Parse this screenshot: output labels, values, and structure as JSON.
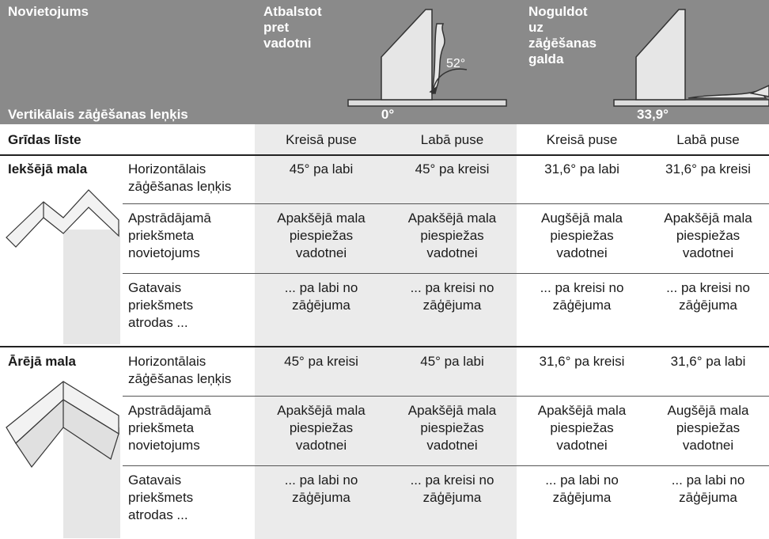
{
  "header": {
    "title": "Novietojums",
    "option_a": [
      "Atbalstot",
      "pret",
      "vadotni"
    ],
    "option_a_angle": "52°",
    "option_b": [
      "Noguldot",
      "uz",
      "zāģēšanas",
      "galda"
    ],
    "vertical_label": "Vertikālais zāģēšanas leņķis",
    "vertical_a": "0°",
    "vertical_b": "33,9°"
  },
  "table": {
    "label": "Grīdas līste",
    "columns": [
      "Kreisā puse",
      "Labā puse",
      "Kreisā puse",
      "Labā puse"
    ],
    "sections": [
      {
        "label": "Iekšējā mala",
        "rows": [
          {
            "label": [
              "Horizontālais",
              "zāģēšanas leņķis"
            ],
            "cells": [
              [
                "45° pa labi"
              ],
              [
                "45° pa kreisi"
              ],
              [
                "31,6° pa labi"
              ],
              [
                "31,6° pa kreisi"
              ]
            ]
          },
          {
            "label": [
              "Apstrādājamā",
              "priekšmeta",
              "novietojums"
            ],
            "cells": [
              [
                "Apakšējā mala",
                "piespiežas",
                "vadotnei"
              ],
              [
                "Apakšējā mala",
                "piespiežas",
                "vadotnei"
              ],
              [
                "Augšējā mala",
                "piespiežas",
                "vadotnei"
              ],
              [
                "Apakšējā mala",
                "piespiežas",
                "vadotnei"
              ]
            ]
          },
          {
            "label": [
              "Gatavais",
              "priekšmets",
              "atrodas ..."
            ],
            "cells": [
              [
                "... pa labi no",
                "zāģējuma"
              ],
              [
                "... pa kreisi no",
                "zāģējuma"
              ],
              [
                "... pa kreisi no",
                "zāģējuma"
              ],
              [
                "... pa kreisi no",
                "zāģējuma"
              ]
            ]
          }
        ]
      },
      {
        "label": "Ārējā mala",
        "rows": [
          {
            "label": [
              "Horizontālais",
              "zāģēšanas leņķis"
            ],
            "cells": [
              [
                "45° pa kreisi"
              ],
              [
                "45° pa labi"
              ],
              [
                "31,6° pa kreisi"
              ],
              [
                "31,6° pa labi"
              ]
            ]
          },
          {
            "label": [
              "Apstrādājamā",
              "priekšmeta",
              "novietojums"
            ],
            "cells": [
              [
                "Apakšējā mala",
                "piespiežas",
                "vadotnei"
              ],
              [
                "Apakšējā mala",
                "piespiežas",
                "vadotnei"
              ],
              [
                "Apakšējā mala",
                "piespiežas",
                "vadotnei"
              ],
              [
                "Augšējā mala",
                "piespiežas",
                "vadotnei"
              ]
            ]
          },
          {
            "label": [
              "Gatavais",
              "priekšmets",
              "atrodas ..."
            ],
            "cells": [
              [
                "... pa labi no",
                "zāģējuma"
              ],
              [
                "... pa kreisi no",
                "zāģējuma"
              ],
              [
                "... pa labi no",
                "zāģējuma"
              ],
              [
                "... pa labi no",
                "zāģējuma"
              ]
            ]
          }
        ]
      }
    ]
  }
}
